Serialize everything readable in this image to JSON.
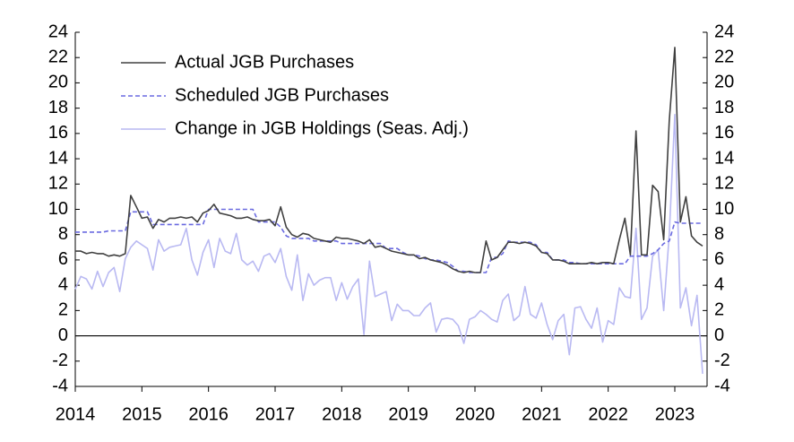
{
  "chart_data": {
    "type": "line",
    "x": [
      2014,
      2014.083,
      2014.167,
      2014.25,
      2014.333,
      2014.417,
      2014.5,
      2014.583,
      2014.667,
      2014.75,
      2014.833,
      2014.917,
      2015,
      2015.083,
      2015.167,
      2015.25,
      2015.333,
      2015.417,
      2015.5,
      2015.583,
      2015.667,
      2015.75,
      2015.833,
      2015.917,
      2016,
      2016.083,
      2016.167,
      2016.25,
      2016.333,
      2016.417,
      2016.5,
      2016.583,
      2016.667,
      2016.75,
      2016.833,
      2016.917,
      2017,
      2017.083,
      2017.167,
      2017.25,
      2017.333,
      2017.417,
      2017.5,
      2017.583,
      2017.667,
      2017.75,
      2017.833,
      2017.917,
      2018,
      2018.083,
      2018.167,
      2018.25,
      2018.333,
      2018.417,
      2018.5,
      2018.583,
      2018.667,
      2018.75,
      2018.833,
      2018.917,
      2019,
      2019.083,
      2019.167,
      2019.25,
      2019.333,
      2019.417,
      2019.5,
      2019.583,
      2019.667,
      2019.75,
      2019.833,
      2019.917,
      2020,
      2020.083,
      2020.167,
      2020.25,
      2020.333,
      2020.417,
      2020.5,
      2020.583,
      2020.667,
      2020.75,
      2020.833,
      2020.917,
      2021,
      2021.083,
      2021.167,
      2021.25,
      2021.333,
      2021.417,
      2021.5,
      2021.583,
      2021.667,
      2021.75,
      2021.833,
      2021.917,
      2022,
      2022.083,
      2022.167,
      2022.25,
      2022.333,
      2022.417,
      2022.5,
      2022.583,
      2022.667,
      2022.75,
      2022.833,
      2022.917,
      2023,
      2023.083,
      2023.167,
      2023.25,
      2023.333,
      2023.417
    ],
    "series": [
      {
        "name": "Actual JGB Purchases",
        "color": "#404040",
        "style": "solid",
        "values": [
          6.7,
          6.7,
          6.5,
          6.6,
          6.5,
          6.5,
          6.3,
          6.4,
          6.3,
          6.5,
          11.1,
          10.2,
          9.3,
          9.4,
          8.5,
          9.2,
          9.0,
          9.3,
          9.3,
          9.4,
          9.3,
          9.4,
          9.0,
          9.7,
          9.9,
          10.4,
          9.7,
          9.6,
          9.5,
          9.3,
          9.3,
          9.4,
          9.2,
          9.1,
          9.1,
          9.2,
          8.7,
          10.2,
          8.6,
          8.0,
          7.8,
          8.1,
          8.0,
          7.7,
          7.6,
          7.5,
          7.4,
          7.8,
          7.7,
          7.7,
          7.6,
          7.5,
          7.3,
          7.6,
          7.0,
          7.1,
          6.9,
          6.7,
          6.6,
          6.5,
          6.4,
          6.4,
          6.1,
          6.2,
          6.0,
          5.9,
          5.8,
          5.6,
          5.3,
          5.1,
          5.0,
          5.1,
          5.0,
          5.0,
          7.5,
          6.0,
          6.2,
          6.8,
          7.4,
          7.4,
          7.3,
          7.4,
          7.3,
          7.1,
          6.6,
          6.5,
          6.0,
          6.0,
          5.9,
          5.7,
          5.7,
          5.7,
          5.7,
          5.8,
          5.7,
          5.8,
          5.8,
          5.7,
          7.6,
          9.3,
          6.4,
          16.2,
          6.4,
          6.4,
          11.9,
          11.4,
          7.6,
          17.0,
          22.8,
          9.0,
          11.0,
          7.9,
          7.4,
          7.1
        ]
      },
      {
        "name": "Scheduled JGB Purchases",
        "color": "#6a6ae0",
        "style": "dashed",
        "values": [
          8.2,
          8.2,
          8.2,
          8.2,
          8.2,
          8.2,
          8.3,
          8.3,
          8.3,
          8.3,
          9.8,
          9.8,
          9.8,
          9.8,
          8.8,
          8.8,
          8.8,
          8.8,
          8.8,
          8.8,
          8.8,
          8.8,
          8.8,
          8.8,
          10.0,
          10.0,
          10.0,
          10.0,
          10.0,
          10.0,
          10.0,
          10.0,
          10.0,
          9.0,
          9.0,
          9.0,
          9.0,
          8.6,
          7.9,
          7.7,
          7.7,
          7.7,
          7.7,
          7.5,
          7.5,
          7.5,
          7.5,
          7.5,
          7.3,
          7.3,
          7.3,
          7.3,
          7.3,
          7.3,
          7.3,
          7.3,
          6.9,
          6.9,
          6.9,
          6.6,
          6.4,
          6.4,
          6.3,
          6.1,
          6.0,
          6.0,
          5.9,
          5.8,
          5.5,
          5.1,
          5.1,
          5.0,
          5.0,
          5.0,
          5.0,
          6.2,
          6.2,
          6.5,
          7.5,
          7.4,
          7.4,
          7.4,
          7.4,
          7.2,
          6.6,
          6.6,
          6.0,
          6.0,
          6.0,
          5.8,
          5.8,
          5.7,
          5.7,
          5.7,
          5.7,
          5.7,
          5.7,
          5.7,
          5.7,
          5.7,
          6.3,
          6.3,
          6.3,
          6.3,
          6.5,
          6.8,
          7.3,
          7.5,
          9.0,
          8.9,
          8.9,
          8.9,
          8.9,
          8.9
        ]
      },
      {
        "name": "Change in JGB Holdings (Seas. Adj.)",
        "color": "#b9b9f2",
        "style": "solid",
        "values": [
          3.7,
          4.7,
          4.5,
          3.7,
          5.1,
          3.9,
          5.0,
          5.4,
          3.5,
          6.1,
          7.0,
          7.5,
          7.2,
          6.9,
          5.2,
          7.6,
          6.7,
          7.0,
          7.1,
          7.2,
          8.5,
          6.0,
          4.8,
          6.6,
          7.6,
          5.4,
          7.7,
          6.7,
          6.5,
          8.1,
          6.0,
          5.6,
          5.9,
          5.1,
          6.3,
          6.5,
          5.8,
          6.9,
          4.7,
          3.6,
          6.4,
          2.8,
          4.9,
          4.0,
          4.4,
          4.6,
          4.6,
          2.8,
          4.2,
          2.9,
          3.9,
          4.5,
          0.1,
          5.9,
          3.1,
          3.3,
          3.5,
          1.2,
          2.5,
          2.0,
          2.0,
          1.6,
          1.6,
          2.2,
          2.6,
          0.3,
          1.3,
          1.4,
          1.3,
          0.8,
          -0.6,
          1.3,
          1.5,
          2.0,
          1.7,
          1.3,
          1.1,
          2.8,
          3.3,
          1.2,
          1.6,
          3.9,
          1.7,
          1.4,
          2.6,
          0.9,
          -0.3,
          1.2,
          1.7,
          -1.5,
          2.2,
          2.3,
          1.3,
          0.6,
          2.2,
          -0.5,
          1.2,
          0.9,
          3.8,
          3.1,
          3.0,
          8.5,
          1.3,
          2.2,
          6.3,
          6.8,
          2.0,
          8.0,
          17.5,
          2.2,
          3.8,
          0.8,
          3.2,
          -3.0
        ]
      }
    ],
    "xlim": [
      2014,
      2023.5
    ],
    "xticks": [
      2014,
      2015,
      2016,
      2017,
      2018,
      2019,
      2020,
      2021,
      2022,
      2023
    ],
    "ylim": [
      -4,
      24
    ],
    "yticks": [
      -4,
      -2,
      0,
      2,
      4,
      6,
      8,
      10,
      12,
      14,
      16,
      18,
      20,
      22,
      24
    ],
    "y2lim": [
      -4,
      24
    ],
    "y2ticks": [
      -4,
      -2,
      0,
      2,
      4,
      6,
      8,
      10,
      12,
      14,
      16,
      18,
      20,
      22,
      24
    ],
    "legend": "upper-left"
  }
}
